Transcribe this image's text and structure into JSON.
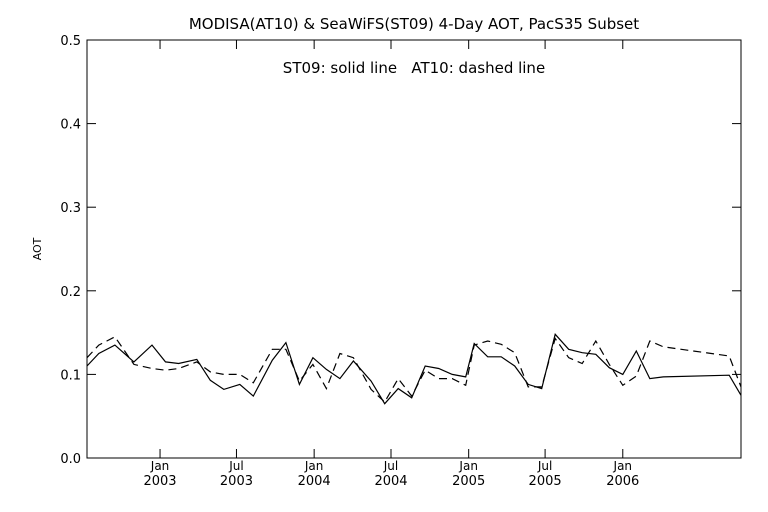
{
  "chart_data": {
    "type": "line",
    "title": "MODISA(AT10) & SeaWiFS(ST09) 4-Day AOT, PacS35 Subset",
    "annotation": "ST09: solid line   AT10: dashed line",
    "ylabel": "AOT",
    "xlabel": "",
    "ylim": [
      0.0,
      0.5
    ],
    "yticks": [
      "0.0",
      "0.1",
      "0.2",
      "0.3",
      "0.4",
      "0.5"
    ],
    "xlim": [
      "2002-07-12",
      "2006-10-08"
    ],
    "xticks": [
      {
        "date": "2003-01-01",
        "month": "Jan",
        "year": "2003"
      },
      {
        "date": "2003-07-01",
        "month": "Jul",
        "year": "2003"
      },
      {
        "date": "2004-01-01",
        "month": "Jan",
        "year": "2004"
      },
      {
        "date": "2004-07-01",
        "month": "Jul",
        "year": "2004"
      },
      {
        "date": "2005-01-01",
        "month": "Jan",
        "year": "2005"
      },
      {
        "date": "2005-07-01",
        "month": "Jul",
        "year": "2005"
      },
      {
        "date": "2006-01-01",
        "month": "Jan",
        "year": "2006"
      }
    ],
    "grid": false,
    "series": [
      {
        "name": "ST09",
        "style": "solid",
        "color": "#000000",
        "x": [
          "2002-07-12",
          "2002-08-09",
          "2002-09-16",
          "2002-10-31",
          "2002-12-13",
          "2003-01-14",
          "2003-02-14",
          "2003-03-29",
          "2003-04-30",
          "2003-06-01",
          "2003-07-09",
          "2003-08-10",
          "2003-09-24",
          "2003-10-26",
          "2003-11-27",
          "2003-12-29",
          "2004-01-30",
          "2004-03-02",
          "2004-04-03",
          "2004-05-15",
          "2004-06-16",
          "2004-07-18",
          "2004-08-19",
          "2004-09-20",
          "2004-10-22",
          "2004-11-23",
          "2004-12-25",
          "2005-01-14",
          "2005-02-15",
          "2005-03-19",
          "2005-04-20",
          "2005-05-22",
          "2005-06-23",
          "2005-07-25",
          "2005-08-26",
          "2005-09-27",
          "2005-10-29",
          "2005-11-30",
          "2006-01-01",
          "2006-02-02",
          "2006-03-06",
          "2006-04-07",
          "2006-09-10",
          "2006-10-08"
        ],
        "y": [
          0.11,
          0.125,
          0.135,
          0.115,
          0.135,
          0.115,
          0.113,
          0.118,
          0.093,
          0.082,
          0.088,
          0.074,
          0.117,
          0.138,
          0.088,
          0.12,
          0.106,
          0.095,
          0.116,
          0.092,
          0.065,
          0.083,
          0.072,
          0.11,
          0.107,
          0.1,
          0.097,
          0.137,
          0.121,
          0.121,
          0.11,
          0.088,
          0.083,
          0.148,
          0.13,
          0.126,
          0.124,
          0.108,
          0.1,
          0.128,
          0.095,
          0.097,
          0.099,
          0.075
        ]
      },
      {
        "name": "AT10",
        "style": "dashed",
        "color": "#000000",
        "x": [
          "2002-07-12",
          "2002-08-09",
          "2002-09-16",
          "2002-10-31",
          "2002-12-13",
          "2003-01-14",
          "2003-02-14",
          "2003-03-29",
          "2003-04-30",
          "2003-06-01",
          "2003-07-09",
          "2003-08-10",
          "2003-09-24",
          "2003-10-26",
          "2003-11-27",
          "2003-12-29",
          "2004-01-30",
          "2004-03-02",
          "2004-04-03",
          "2004-05-15",
          "2004-06-16",
          "2004-07-18",
          "2004-08-19",
          "2004-09-20",
          "2004-10-22",
          "2004-11-23",
          "2004-12-25",
          "2005-01-14",
          "2005-02-15",
          "2005-03-19",
          "2005-04-20",
          "2005-05-22",
          "2005-06-23",
          "2005-07-25",
          "2005-08-26",
          "2005-09-27",
          "2005-10-29",
          "2005-11-30",
          "2006-01-01",
          "2006-02-02",
          "2006-03-06",
          "2006-04-07",
          "2006-09-10",
          "2006-10-08"
        ],
        "y": [
          0.12,
          0.135,
          0.145,
          0.112,
          0.107,
          0.105,
          0.107,
          0.115,
          0.103,
          0.1,
          0.1,
          0.09,
          0.13,
          0.13,
          0.092,
          0.112,
          0.083,
          0.125,
          0.12,
          0.082,
          0.067,
          0.095,
          0.074,
          0.105,
          0.095,
          0.095,
          0.087,
          0.135,
          0.14,
          0.136,
          0.126,
          0.085,
          0.085,
          0.143,
          0.12,
          0.113,
          0.14,
          0.112,
          0.087,
          0.098,
          0.14,
          0.133,
          0.122,
          0.085
        ]
      }
    ]
  }
}
